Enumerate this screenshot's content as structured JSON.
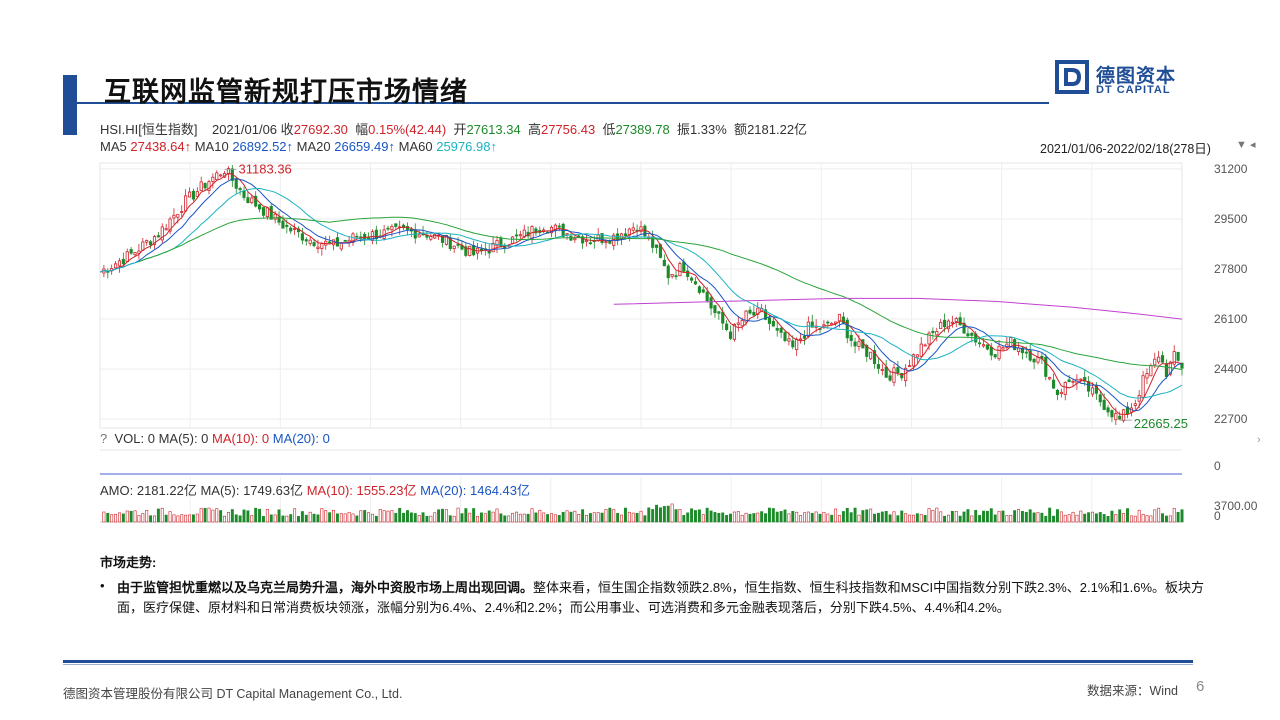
{
  "slide": {
    "title": "互联网监管新规打压市场情绪",
    "logo_cn": "德图资本",
    "logo_en": "DT CAPITAL",
    "brand_color": "#1f4e96",
    "page_number": "6",
    "footer_company": "德图资本管理股份有限公司 DT Capital Management Co., Ltd.",
    "source": "数据来源：Wind"
  },
  "quote": {
    "symbol": "HSI.HI[恒生指数]",
    "date": "2021/01/06",
    "close_label": "收",
    "close": "27692.30",
    "change_label": "幅",
    "change": "0.15%(42.44)",
    "open_label": "开",
    "open": "27613.34",
    "high_label": "高",
    "high": "27756.43",
    "low_label": "低",
    "low": "27389.78",
    "amp_label": "振",
    "amp": "1.33%",
    "amt_label": "额",
    "amt": "2181.22亿"
  },
  "ma": {
    "ma5_label": "MA5",
    "ma5": "27438.64↑",
    "ma10_label": "MA10",
    "ma10": "26892.52↑",
    "ma20_label": "MA20",
    "ma20": "26659.49↑",
    "ma60_label": "MA60",
    "ma60": "25976.98↑",
    "colors": {
      "ma5": "#d0232a",
      "ma10": "#1a55c4",
      "ma20": "#1bb3c2",
      "ma60": "#2aa33a",
      "ma_long": "#c040d0"
    }
  },
  "range": {
    "label": "2021/01/06-2022/02/18(278日)",
    "menu_icon": "triangle-down-icon"
  },
  "volume_panel": {
    "help": "?",
    "vol_label": "VOL: 0",
    "ma5": "MA(5): 0",
    "ma10": "MA(10): 0",
    "ma20": "MA(20): 0",
    "axis_zero": "0"
  },
  "amount_panel": {
    "amo_label": "AMO: 2181.22亿",
    "ma5": "MA(5): 1749.63亿",
    "ma10": "MA(10): 1555.23亿",
    "ma20": "MA(20): 1464.43亿",
    "axis_top": "3700.00",
    "axis_zero": "0"
  },
  "commentary": {
    "heading": "市场走势:",
    "bullet": "•",
    "bold_text": "由于监管担忧重燃以及乌克兰局势升温，海外中资股市场上周出现回调。",
    "body_text": "整体来看，恒生国企指数领跌2.8%，恒生指数、恒生科技指数和MSCI中国指数分别下跌2.3%、2.1%和1.6%。板块方面，医疗保健、原材料和日常消费板块领涨，涨幅分别为6.4%、2.4%和2.2%；而公用事业、可选消费和多元金融表现落后，分别下跌4.5%、4.4%和4.2%。"
  },
  "chart_data": {
    "type": "candlestick",
    "title": "HSI.HI[恒生指数]",
    "x_range": [
      "2021/01/06",
      "2022/02/18"
    ],
    "trading_days": 278,
    "y_ticks": [
      22700,
      24400,
      26100,
      27800,
      29500,
      31200
    ],
    "ylim": [
      22400,
      31400
    ],
    "annotations": [
      {
        "label": "31183.36",
        "value": 31183.36,
        "type": "max"
      },
      {
        "label": "22665.25",
        "value": 22665.25,
        "type": "min"
      }
    ],
    "close_path": [
      [
        0,
        27700
      ],
      [
        8,
        28300
      ],
      [
        15,
        29000
      ],
      [
        22,
        30100
      ],
      [
        28,
        30800
      ],
      [
        32,
        31183.36
      ],
      [
        37,
        30300
      ],
      [
        42,
        29800
      ],
      [
        48,
        29200
      ],
      [
        54,
        28800
      ],
      [
        60,
        28600
      ],
      [
        66,
        28900
      ],
      [
        72,
        29000
      ],
      [
        78,
        29100
      ],
      [
        84,
        29000
      ],
      [
        90,
        28700
      ],
      [
        96,
        28300
      ],
      [
        102,
        28600
      ],
      [
        108,
        28900
      ],
      [
        114,
        29300
      ],
      [
        120,
        29000
      ],
      [
        126,
        28800
      ],
      [
        132,
        28900
      ],
      [
        138,
        29300
      ],
      [
        142,
        28600
      ],
      [
        146,
        27600
      ],
      [
        150,
        27900
      ],
      [
        154,
        27200
      ],
      [
        158,
        26300
      ],
      [
        162,
        25600
      ],
      [
        166,
        26200
      ],
      [
        170,
        26300
      ],
      [
        174,
        25600
      ],
      [
        178,
        25100
      ],
      [
        182,
        25800
      ],
      [
        186,
        25800
      ],
      [
        190,
        26100
      ],
      [
        194,
        25200
      ],
      [
        198,
        24900
      ],
      [
        202,
        24200
      ],
      [
        206,
        24300
      ],
      [
        210,
        25000
      ],
      [
        214,
        25600
      ],
      [
        218,
        26100
      ],
      [
        222,
        25800
      ],
      [
        226,
        25300
      ],
      [
        230,
        25000
      ],
      [
        234,
        25300
      ],
      [
        238,
        25000
      ],
      [
        242,
        24600
      ],
      [
        246,
        23600
      ],
      [
        250,
        24100
      ],
      [
        254,
        23700
      ],
      [
        258,
        23200
      ],
      [
        262,
        22665.25
      ],
      [
        266,
        23300
      ],
      [
        268,
        24000
      ],
      [
        270,
        24400
      ],
      [
        272,
        24900
      ],
      [
        274,
        24300
      ],
      [
        276,
        24800
      ],
      [
        278,
        24500
      ]
    ],
    "ma_long_path": [
      [
        132,
        26600
      ],
      [
        160,
        26700
      ],
      [
        190,
        26800
      ],
      [
        210,
        26800
      ],
      [
        230,
        26700
      ],
      [
        250,
        26500
      ],
      [
        265,
        26300
      ],
      [
        278,
        26100
      ]
    ],
    "volume": {
      "axis_top": 3700,
      "axis_bottom": 0
    }
  }
}
